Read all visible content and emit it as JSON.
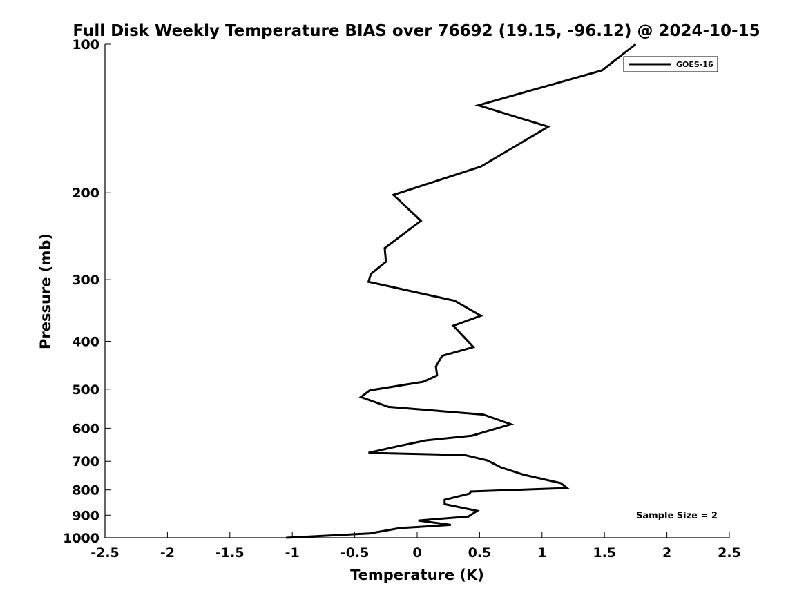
{
  "chart_data": {
    "type": "line",
    "title": "Full Disk Weekly Temperature BIAS over 76692 (19.15, -96.12) @ 2024-10-15",
    "xlabel": "Temperature (K)",
    "ylabel": "Pressure (mb)",
    "xlim": [
      -2.5,
      2.5
    ],
    "ylim": [
      1000,
      100
    ],
    "y_scale": "log",
    "x_ticks": [
      "-2.5",
      "-2",
      "-1.5",
      "-1",
      "-0.5",
      "0",
      "0.5",
      "1",
      "1.5",
      "2",
      "2.5"
    ],
    "y_ticks": [
      "100",
      "200",
      "300",
      "400",
      "500",
      "600",
      "700",
      "800",
      "900",
      "1000"
    ],
    "grid": false,
    "legend_position": "top-right",
    "annotation": "Sample Size = 2",
    "series": [
      {
        "name": "GOES-16",
        "color": "#000000",
        "x": [
          1.75,
          1.48,
          0.49,
          1.05,
          0.51,
          -0.19,
          0.03,
          -0.26,
          -0.25,
          -0.37,
          -0.39,
          0.3,
          0.51,
          0.29,
          0.45,
          0.2,
          0.15,
          0.16,
          0.05,
          -0.38,
          -0.45,
          -0.23,
          0.53,
          0.75,
          0.44,
          0.07,
          -0.16,
          -0.39,
          0.38,
          0.56,
          0.67,
          0.85,
          1.15,
          1.2,
          0.43,
          0.42,
          0.22,
          0.22,
          0.48,
          0.41,
          0.01,
          0.27,
          -0.14,
          -0.38,
          -1.05
        ],
        "y": [
          100,
          113,
          133,
          147,
          177,
          202,
          228,
          259,
          276,
          292,
          303,
          331,
          355,
          372,
          411,
          428,
          450,
          469,
          483,
          503,
          519,
          543,
          563,
          589,
          621,
          635,
          653,
          673,
          680,
          697,
          720,
          745,
          775,
          793,
          806,
          814,
          838,
          855,
          882,
          906,
          923,
          942,
          956,
          980,
          1000
        ]
      }
    ]
  }
}
